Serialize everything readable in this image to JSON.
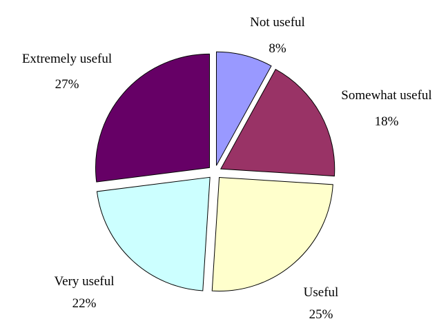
{
  "chart_data": {
    "type": "pie",
    "title": "",
    "categories": [
      "Not useful",
      "Somewhat useful",
      "Useful",
      "Very useful",
      "Extremely useful"
    ],
    "values": [
      8,
      18,
      25,
      22,
      27
    ],
    "value_suffix": "%",
    "exploded": true,
    "legend": "none",
    "colors": [
      "#9999ff",
      "#993366",
      "#ffffcc",
      "#ccffff",
      "#660066"
    ]
  }
}
